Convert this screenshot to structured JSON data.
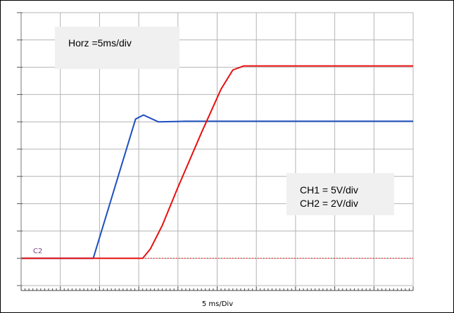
{
  "chart_data": {
    "type": "line",
    "title": "",
    "xlabel": "5 ms/Div",
    "ylabel": "",
    "grid": true,
    "divisions": {
      "x": 10,
      "y": 10
    },
    "xlim": [
      0,
      50
    ],
    "x_unit": "ms",
    "ylim_div": [
      -1,
      9
    ],
    "annotations": {
      "horz": "Horz =5ms/div",
      "ch1": "CH1 = 5V/div",
      "ch2": "CH2 = 2V/div"
    },
    "marker_label": "C2",
    "colors": {
      "grid": "#b4b4b4",
      "background": "#ffffff",
      "note_box": "#f0f0f0",
      "marker": "#7a3f80"
    },
    "series": [
      {
        "color": "#1f4fbf",
        "points": [
          [
            0,
            0
          ],
          [
            9.2,
            0
          ],
          [
            14.6,
            5.1
          ],
          [
            15.6,
            5.25
          ],
          [
            17.5,
            5.0
          ],
          [
            21,
            5.02
          ],
          [
            50,
            5.02
          ]
        ],
        "channel": "CH2",
        "units": "div"
      },
      {
        "color": "#e81010",
        "points": [
          [
            0,
            0
          ],
          [
            15.5,
            0
          ],
          [
            16.5,
            0.35
          ],
          [
            18,
            1.2
          ],
          [
            20,
            2.6
          ],
          [
            23,
            4.6
          ],
          [
            25.5,
            6.2
          ],
          [
            27,
            6.9
          ],
          [
            28.4,
            7.05
          ],
          [
            50,
            7.05
          ]
        ],
        "channel": "CH1",
        "units": "div"
      }
    ],
    "reference_line": {
      "y": 0,
      "color": "#e81010",
      "style": "dotted"
    }
  }
}
